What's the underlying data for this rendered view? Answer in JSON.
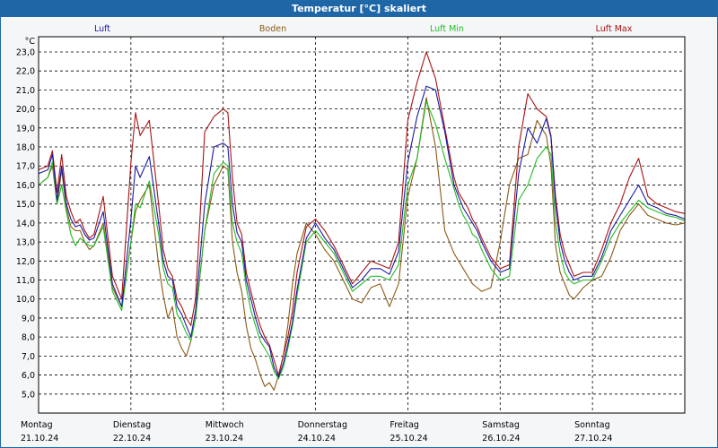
{
  "window": {
    "title": "Temperatur [°C] skaliert"
  },
  "chart_data": {
    "type": "line",
    "title": "Temperatur [°C] skaliert",
    "ylabel": "°C",
    "xlabel": "",
    "ylim": [
      4.0,
      23.8
    ],
    "xlim": [
      0,
      7
    ],
    "grid": true,
    "legend_placement": "top",
    "yticks": [
      "5,0",
      "6,0",
      "7,0",
      "8,0",
      "9,0",
      "10,0",
      "11,0",
      "12,0",
      "13,0",
      "14,0",
      "15,0",
      "16,0",
      "17,0",
      "18,0",
      "19,0",
      "20,0",
      "21,0",
      "22,0",
      "23,0"
    ],
    "days": [
      {
        "name": "Montag",
        "date": "21.10.24"
      },
      {
        "name": "Dienstag",
        "date": "22.10.24"
      },
      {
        "name": "Mittwoch",
        "date": "23.10.24"
      },
      {
        "name": "Donnerstag",
        "date": "24.10.24"
      },
      {
        "name": "Freitag",
        "date": "25.10.24"
      },
      {
        "name": "Samstag",
        "date": "26.10.24"
      },
      {
        "name": "Sonntag",
        "date": "27.10.24"
      }
    ],
    "series": [
      {
        "name": "Luft",
        "color": "#1a1aa6",
        "x": [
          0,
          0.1,
          0.15,
          0.2,
          0.25,
          0.3,
          0.35,
          0.4,
          0.45,
          0.5,
          0.55,
          0.6,
          0.7,
          0.8,
          0.9,
          1.0,
          1.05,
          1.1,
          1.2,
          1.3,
          1.35,
          1.4,
          1.45,
          1.5,
          1.55,
          1.6,
          1.65,
          1.7,
          1.8,
          1.9,
          2.0,
          2.05,
          2.1,
          2.15,
          2.2,
          2.25,
          2.3,
          2.35,
          2.4,
          2.45,
          2.5,
          2.55,
          2.6,
          2.65,
          2.7,
          2.75,
          2.8,
          2.9,
          3.0,
          3.1,
          3.2,
          3.3,
          3.4,
          3.5,
          3.6,
          3.7,
          3.8,
          3.9,
          4.0,
          4.1,
          4.2,
          4.3,
          4.4,
          4.5,
          4.55,
          4.6,
          4.65,
          4.7,
          4.75,
          4.8,
          4.9,
          5.0,
          5.1,
          5.2,
          5.3,
          5.4,
          5.5,
          5.55,
          5.6,
          5.65,
          5.7,
          5.75,
          5.8,
          5.9,
          6.0,
          6.1,
          6.2,
          6.3,
          6.4,
          6.5,
          6.6,
          6.7,
          6.8,
          6.9,
          7.0
        ],
        "y": [
          16.6,
          16.8,
          17.6,
          15.2,
          17.0,
          15.0,
          14.2,
          13.8,
          13.9,
          13.4,
          13.1,
          13.2,
          14.6,
          10.8,
          9.6,
          14.2,
          17.0,
          16.4,
          17.5,
          14.0,
          12.0,
          11.2,
          11.0,
          9.6,
          9.2,
          8.6,
          8.0,
          9.4,
          15.0,
          18.0,
          18.2,
          18.0,
          15.0,
          13.5,
          13.0,
          11.0,
          10.0,
          9.0,
          8.2,
          7.8,
          7.5,
          6.4,
          5.9,
          6.6,
          7.6,
          8.8,
          10.5,
          13.2,
          14.0,
          13.2,
          12.6,
          11.6,
          10.6,
          11.0,
          11.6,
          11.6,
          11.3,
          12.5,
          17.2,
          19.6,
          21.2,
          21.0,
          18.8,
          16.0,
          15.4,
          14.8,
          14.4,
          14.0,
          13.6,
          13.0,
          12.0,
          11.4,
          11.6,
          16.6,
          19.0,
          18.2,
          19.5,
          18.5,
          15.0,
          13.0,
          12.0,
          11.4,
          11.0,
          11.2,
          11.2,
          12.2,
          13.6,
          14.4,
          15.2,
          16.0,
          15.0,
          14.8,
          14.5,
          14.4,
          14.2
        ]
      },
      {
        "name": "Boden",
        "color": "#8a5a14",
        "x": [
          0,
          0.1,
          0.15,
          0.2,
          0.25,
          0.3,
          0.35,
          0.4,
          0.45,
          0.5,
          0.55,
          0.6,
          0.7,
          0.8,
          0.9,
          1.0,
          1.05,
          1.1,
          1.2,
          1.3,
          1.35,
          1.4,
          1.45,
          1.5,
          1.55,
          1.6,
          1.65,
          1.7,
          1.8,
          1.9,
          2.0,
          2.05,
          2.1,
          2.15,
          2.2,
          2.25,
          2.3,
          2.35,
          2.4,
          2.45,
          2.5,
          2.55,
          2.6,
          2.65,
          2.7,
          2.75,
          2.8,
          2.9,
          3.0,
          3.1,
          3.2,
          3.3,
          3.4,
          3.5,
          3.6,
          3.7,
          3.8,
          3.9,
          4.0,
          4.1,
          4.2,
          4.3,
          4.4,
          4.5,
          4.55,
          4.6,
          4.65,
          4.7,
          4.75,
          4.8,
          4.9,
          5.0,
          5.1,
          5.2,
          5.3,
          5.4,
          5.5,
          5.55,
          5.6,
          5.65,
          5.7,
          5.75,
          5.8,
          5.9,
          6.0,
          6.1,
          6.2,
          6.3,
          6.4,
          6.5,
          6.6,
          6.7,
          6.8,
          6.9,
          7.0
        ],
        "y": [
          16.0,
          16.4,
          17.0,
          15.0,
          16.8,
          14.8,
          13.8,
          13.6,
          13.6,
          13.0,
          12.6,
          12.8,
          14.0,
          10.6,
          9.6,
          13.0,
          14.6,
          15.2,
          16.0,
          11.8,
          10.2,
          9.0,
          9.6,
          8.0,
          7.4,
          7.0,
          7.8,
          9.0,
          13.6,
          16.0,
          17.0,
          16.8,
          13.0,
          11.4,
          10.4,
          8.6,
          7.4,
          6.8,
          6.0,
          5.4,
          5.6,
          5.2,
          6.0,
          7.0,
          8.6,
          10.8,
          12.4,
          14.0,
          13.4,
          12.6,
          12.0,
          11.0,
          10.0,
          9.8,
          10.6,
          10.8,
          9.6,
          10.8,
          15.4,
          17.4,
          20.6,
          18.0,
          13.6,
          12.4,
          12.0,
          11.6,
          11.2,
          10.8,
          10.6,
          10.4,
          10.6,
          13.0,
          16.0,
          17.4,
          17.6,
          19.4,
          18.6,
          17.0,
          12.8,
          11.4,
          10.8,
          10.2,
          10.0,
          10.6,
          11.0,
          11.2,
          12.2,
          13.6,
          14.4,
          15.0,
          14.4,
          14.2,
          14.0,
          13.9,
          14.0
        ]
      },
      {
        "name": "Luft Min",
        "color": "#22bb22",
        "x": [
          0,
          0.1,
          0.15,
          0.2,
          0.25,
          0.3,
          0.35,
          0.4,
          0.45,
          0.5,
          0.55,
          0.6,
          0.7,
          0.8,
          0.9,
          1.0,
          1.05,
          1.1,
          1.2,
          1.3,
          1.35,
          1.4,
          1.45,
          1.5,
          1.55,
          1.6,
          1.65,
          1.7,
          1.8,
          1.9,
          2.0,
          2.05,
          2.1,
          2.15,
          2.2,
          2.25,
          2.3,
          2.35,
          2.4,
          2.45,
          2.5,
          2.55,
          2.6,
          2.65,
          2.7,
          2.75,
          2.8,
          2.9,
          3.0,
          3.1,
          3.2,
          3.3,
          3.4,
          3.5,
          3.6,
          3.7,
          3.8,
          3.9,
          4.0,
          4.1,
          4.2,
          4.3,
          4.4,
          4.5,
          4.55,
          4.6,
          4.65,
          4.7,
          4.75,
          4.8,
          4.9,
          5.0,
          5.1,
          5.2,
          5.3,
          5.4,
          5.5,
          5.55,
          5.6,
          5.65,
          5.7,
          5.75,
          5.8,
          5.9,
          6.0,
          6.1,
          6.2,
          6.3,
          6.4,
          6.5,
          6.6,
          6.7,
          6.8,
          6.9,
          7.0
        ],
        "y": [
          16.0,
          16.4,
          17.2,
          15.0,
          16.0,
          14.6,
          13.4,
          12.8,
          13.2,
          13.0,
          12.8,
          12.8,
          13.8,
          10.4,
          9.4,
          13.0,
          15.0,
          14.8,
          16.2,
          13.4,
          11.6,
          10.8,
          10.6,
          9.2,
          8.8,
          8.2,
          7.8,
          9.0,
          13.6,
          16.6,
          17.2,
          17.0,
          14.0,
          13.0,
          12.4,
          10.6,
          9.4,
          8.6,
          7.8,
          7.4,
          7.0,
          6.2,
          5.8,
          6.4,
          7.4,
          8.6,
          10.2,
          13.0,
          13.6,
          13.0,
          12.4,
          11.4,
          10.4,
          10.8,
          11.2,
          11.2,
          11.0,
          11.8,
          16.0,
          17.4,
          20.4,
          19.2,
          17.4,
          15.8,
          15.0,
          14.4,
          14.0,
          13.4,
          13.2,
          12.6,
          11.6,
          11.0,
          11.2,
          15.2,
          16.0,
          17.4,
          18.0,
          17.6,
          14.0,
          12.4,
          11.4,
          11.0,
          10.8,
          11.0,
          11.0,
          12.0,
          13.2,
          14.0,
          14.6,
          15.2,
          14.8,
          14.6,
          14.4,
          14.3,
          14.1
        ]
      },
      {
        "name": "Luft Max",
        "color": "#aa1111",
        "x": [
          0,
          0.1,
          0.15,
          0.2,
          0.25,
          0.3,
          0.35,
          0.4,
          0.45,
          0.5,
          0.55,
          0.6,
          0.7,
          0.8,
          0.9,
          1.0,
          1.05,
          1.1,
          1.2,
          1.3,
          1.35,
          1.4,
          1.45,
          1.5,
          1.55,
          1.6,
          1.65,
          1.7,
          1.8,
          1.9,
          2.0,
          2.05,
          2.1,
          2.15,
          2.2,
          2.25,
          2.3,
          2.35,
          2.4,
          2.45,
          2.5,
          2.55,
          2.6,
          2.65,
          2.7,
          2.75,
          2.8,
          2.9,
          3.0,
          3.1,
          3.2,
          3.3,
          3.4,
          3.5,
          3.6,
          3.7,
          3.8,
          3.9,
          4.0,
          4.1,
          4.2,
          4.3,
          4.4,
          4.5,
          4.55,
          4.6,
          4.65,
          4.7,
          4.75,
          4.8,
          4.9,
          5.0,
          5.1,
          5.2,
          5.3,
          5.4,
          5.5,
          5.55,
          5.6,
          5.65,
          5.7,
          5.75,
          5.8,
          5.9,
          6.0,
          6.1,
          6.2,
          6.3,
          6.4,
          6.5,
          6.6,
          6.7,
          6.8,
          6.9,
          7.0
        ],
        "y": [
          16.8,
          17.0,
          17.8,
          15.6,
          17.6,
          15.4,
          14.6,
          14.0,
          14.2,
          13.6,
          13.2,
          13.4,
          15.4,
          11.2,
          10.0,
          17.2,
          19.8,
          18.6,
          19.4,
          15.0,
          12.6,
          11.6,
          11.2,
          10.0,
          9.6,
          9.0,
          8.6,
          10.0,
          18.8,
          19.6,
          20.0,
          19.8,
          16.4,
          14.0,
          13.4,
          11.4,
          10.4,
          9.4,
          8.6,
          8.0,
          7.6,
          6.8,
          6.0,
          7.0,
          8.0,
          9.4,
          11.4,
          13.8,
          14.2,
          13.6,
          12.8,
          11.8,
          10.8,
          11.4,
          12.0,
          11.8,
          11.6,
          13.0,
          19.4,
          21.4,
          23.0,
          21.6,
          19.0,
          16.4,
          15.6,
          15.2,
          14.8,
          14.2,
          13.8,
          13.2,
          12.2,
          11.6,
          11.8,
          18.0,
          20.8,
          20.0,
          19.6,
          18.6,
          15.4,
          13.4,
          12.4,
          11.8,
          11.2,
          11.4,
          11.4,
          12.6,
          14.0,
          15.0,
          16.4,
          17.4,
          15.4,
          15.0,
          14.8,
          14.6,
          14.5
        ]
      }
    ]
  }
}
